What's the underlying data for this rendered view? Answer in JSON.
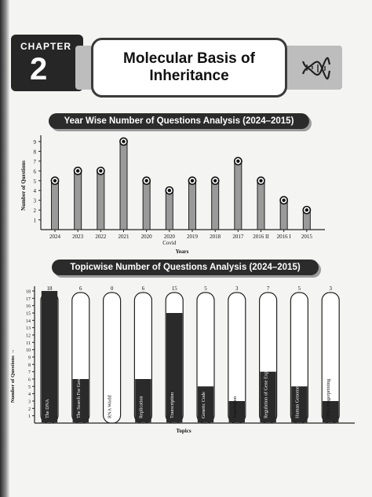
{
  "chapter": {
    "label": "CHAPTER",
    "number": "2"
  },
  "title": "Molecular Basis of Inheritance",
  "chart_data": [
    {
      "type": "bar",
      "title": "Year Wise Number of Questions Analysis (2024–2015)",
      "xlabel": "Years",
      "ylabel": "Number of Questions",
      "categories": [
        "2024",
        "2023",
        "2022",
        "2021",
        "2020",
        "2020\nCovid",
        "2019",
        "2018",
        "2017",
        "2016 II",
        "2016 I",
        "2015"
      ],
      "values": [
        5,
        6,
        6,
        9,
        5,
        4,
        5,
        5,
        7,
        5,
        3,
        2
      ],
      "ylim": [
        0,
        9
      ],
      "yticks": [
        1,
        2,
        3,
        4,
        5,
        6,
        7,
        8,
        9
      ],
      "grid": false
    },
    {
      "type": "bar",
      "title": "Topicwise Number of Questions Analysis (2024–2015)",
      "xlabel": "Topics",
      "ylabel": "Number of Questions",
      "categories": [
        "The DNA",
        "The Search For Genetic Material",
        "RNA World",
        "Replication",
        "Transcription",
        "Genetic Code",
        "Translation",
        "Regulation of Gene Expression",
        "Human Genome Project",
        "DNA Fingerprinting"
      ],
      "values": [
        18,
        6,
        0,
        6,
        15,
        5,
        3,
        7,
        5,
        3
      ],
      "ylim": [
        0,
        18
      ],
      "yticks": [
        1,
        2,
        3,
        4,
        5,
        6,
        7,
        8,
        9,
        10,
        11,
        12,
        13,
        14,
        15,
        16,
        17,
        18
      ],
      "grid": false
    }
  ]
}
